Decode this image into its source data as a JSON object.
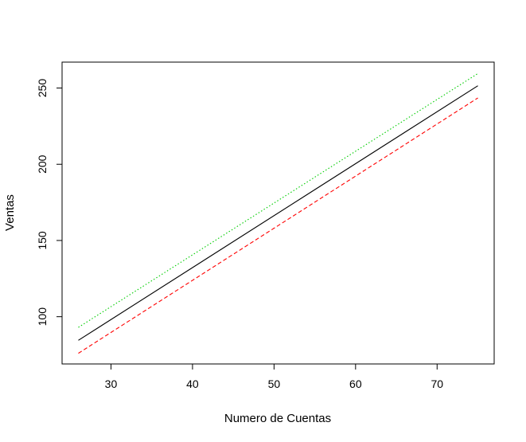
{
  "chart_data": {
    "type": "line",
    "title": "",
    "xlabel": "Numero de Cuentas",
    "ylabel": "Ventas",
    "xlim": [
      24,
      77
    ],
    "ylim": [
      69,
      267
    ],
    "xticks": [
      30,
      40,
      50,
      60,
      70
    ],
    "yticks": [
      100,
      150,
      200,
      250
    ],
    "grid": false,
    "legend": "none",
    "series": [
      {
        "x": [
          26,
          75
        ],
        "y": [
          84.5,
          251.5
        ],
        "color": "#000000",
        "style": "solid"
      },
      {
        "x": [
          26,
          75
        ],
        "y": [
          76,
          243.5
        ],
        "color": "#ff0000",
        "style": "dashed"
      },
      {
        "x": [
          26,
          75
        ],
        "y": [
          93,
          259.5
        ],
        "color": "#00cd00",
        "style": "dotted"
      }
    ]
  }
}
